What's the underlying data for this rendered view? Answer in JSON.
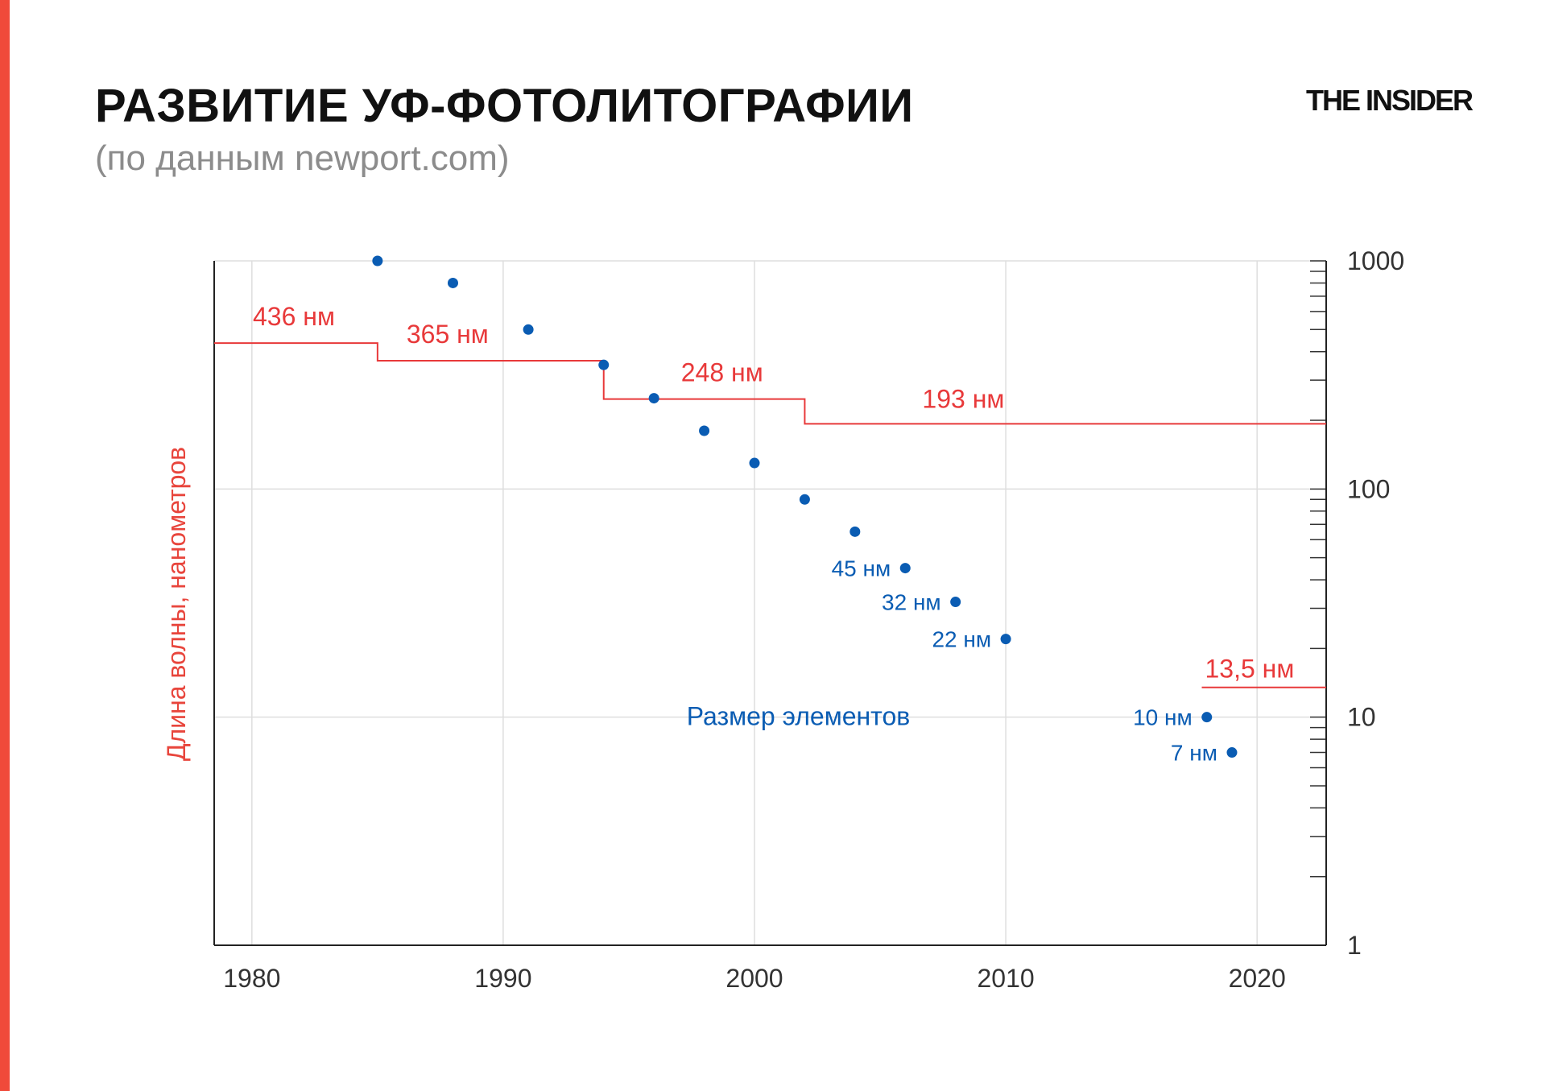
{
  "header": {
    "title": "РАЗВИТИЕ УФ-ФОТОЛИТОГРАФИИ",
    "subtitle": "(по данным newport.com)",
    "logo": "THE INSIDER"
  },
  "chart_data": {
    "type": "scatter",
    "title": "РАЗВИТИЕ УФ-ФОТОЛИТОГРАФИИ",
    "subtitle": "(по данным newport.com)",
    "ylabel": "Длина волны, нанометров",
    "yscale": "log",
    "xlim": [
      1978.5,
      2022.75
    ],
    "ylim": [
      1,
      1000
    ],
    "x_ticks": [
      1980,
      1990,
      2000,
      2010,
      2020
    ],
    "y_ticks": [
      1,
      10,
      100,
      1000
    ],
    "y_axis_side": "right",
    "grid": true,
    "colors": {
      "wavelength": "#e8393a",
      "feature": "#0a5cb3",
      "accent_bar": "#f04a3a"
    },
    "feature_series": {
      "label": "Размер элементов",
      "points": [
        {
          "x": 1985,
          "y": 1000,
          "label": ""
        },
        {
          "x": 1988,
          "y": 800,
          "label": ""
        },
        {
          "x": 1991,
          "y": 500,
          "label": ""
        },
        {
          "x": 1994,
          "y": 350,
          "label": ""
        },
        {
          "x": 1996,
          "y": 250,
          "label": ""
        },
        {
          "x": 1998,
          "y": 180,
          "label": ""
        },
        {
          "x": 2000,
          "y": 130,
          "label": ""
        },
        {
          "x": 2002,
          "y": 90,
          "label": ""
        },
        {
          "x": 2004,
          "y": 65,
          "label": ""
        },
        {
          "x": 2006,
          "y": 45,
          "label": "45 нм"
        },
        {
          "x": 2008,
          "y": 32,
          "label": "32 нм"
        },
        {
          "x": 2010,
          "y": 22,
          "label": "22 нм"
        },
        {
          "x": 2018,
          "y": 10,
          "label": "10 нм"
        },
        {
          "x": 2019,
          "y": 7,
          "label": "7 нм"
        }
      ]
    },
    "wavelength_steps": [
      {
        "x_start": 1978.5,
        "x_end": 1985,
        "y": 436,
        "label": "436 нм"
      },
      {
        "x_start": 1985,
        "x_end": 1994,
        "y": 365,
        "label": "365 нм"
      },
      {
        "x_start": 1994,
        "x_end": 2002,
        "y": 248,
        "label": "248 нм"
      },
      {
        "x_start": 2002,
        "x_end": 2022.75,
        "y": 193,
        "label": "193 нм"
      }
    ],
    "euv_step": {
      "x_start": 2017.8,
      "x_end": 2022.75,
      "y": 13.5,
      "label": "13,5 нм"
    }
  }
}
